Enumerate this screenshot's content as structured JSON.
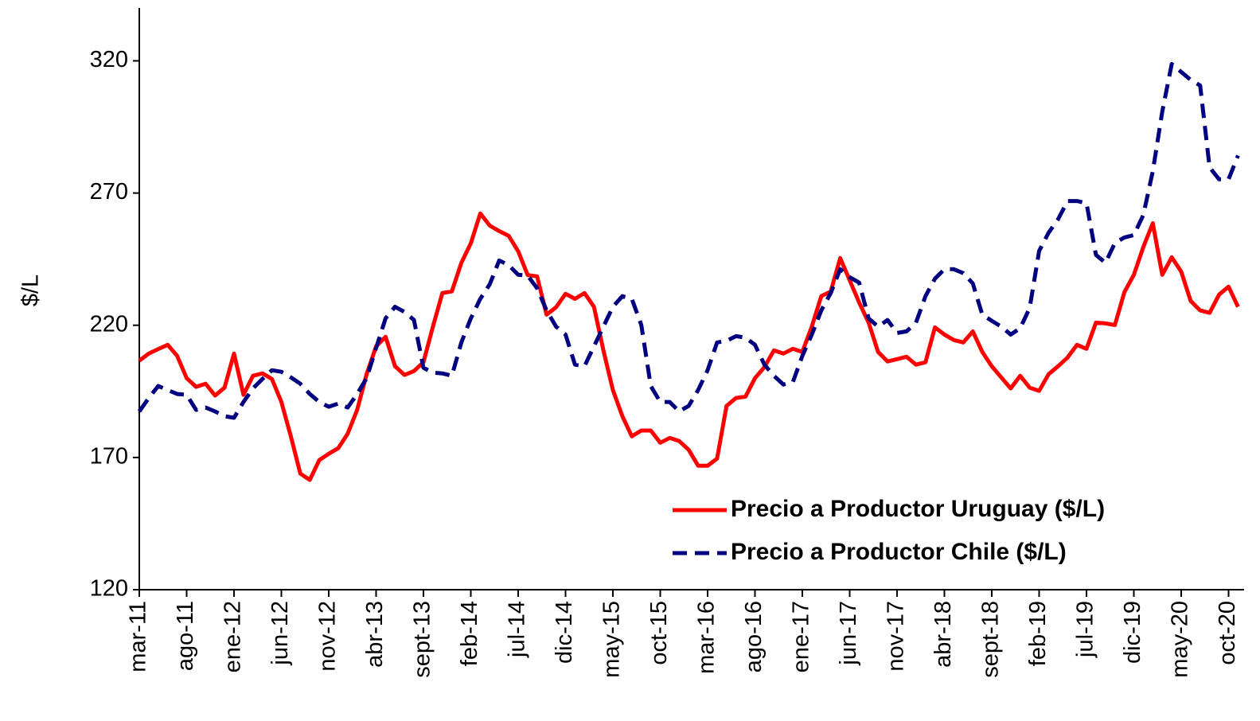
{
  "chart_data": {
    "type": "line",
    "y_label": "$/L",
    "categories": [
      "mar-11",
      null,
      null,
      null,
      null,
      "ago-11",
      null,
      null,
      null,
      null,
      "ene-12",
      null,
      null,
      null,
      null,
      "jun-12",
      null,
      null,
      null,
      null,
      "nov-12",
      null,
      null,
      null,
      null,
      "abr-13",
      null,
      null,
      null,
      null,
      "sept-13",
      null,
      null,
      null,
      null,
      "feb-14",
      null,
      null,
      null,
      null,
      "jul-14",
      null,
      null,
      null,
      null,
      "dic-14",
      null,
      null,
      null,
      null,
      "may-15",
      null,
      null,
      null,
      null,
      "oct-15",
      null,
      null,
      null,
      null,
      "mar-16",
      null,
      null,
      null,
      null,
      "ago-16",
      null,
      null,
      null,
      null,
      "ene-17",
      null,
      null,
      null,
      null,
      "jun-17",
      null,
      null,
      null,
      null,
      "nov-17",
      null,
      null,
      null,
      null,
      "abr-18",
      null,
      null,
      null,
      null,
      "sept-18",
      null,
      null,
      null,
      null,
      "feb-19",
      null,
      null,
      null,
      null,
      "jul-19",
      null,
      null,
      null,
      null,
      "dic-19",
      null,
      null,
      null,
      null,
      "may-20",
      null,
      null,
      null,
      null,
      "oct-20",
      null
    ],
    "series": [
      {
        "name": "Precio a Productor Uruguay ($/L)",
        "color": "#ff0000",
        "style": "solid",
        "values": [
          206.6,
          209.3,
          211,
          212.6,
          208.4,
          200,
          196.7,
          197.9,
          193.4,
          196.4,
          209.3,
          193.7,
          200.9,
          201.8,
          199.7,
          191,
          178,
          163.9,
          161.5,
          169,
          171.4,
          173.5,
          179,
          188,
          201.5,
          212,
          215.6,
          204.5,
          201.2,
          202.7,
          206,
          219.5,
          232.2,
          232.8,
          243.6,
          251,
          262.3,
          257.7,
          255.6,
          253.8,
          248,
          239,
          238.5,
          224,
          226.8,
          231.9,
          230,
          232.2,
          227,
          210.5,
          195.5,
          185.6,
          178,
          180.2,
          180.2,
          175.6,
          177.4,
          176.2,
          172.9,
          166.9,
          166.9,
          169.6,
          189.5,
          192.5,
          193,
          200,
          204.2,
          210.5,
          209.3,
          211.1,
          209.9,
          219.5,
          231,
          232.8,
          245.4,
          237,
          228.6,
          221,
          209.9,
          206.3,
          207.2,
          208.1,
          205.1,
          206,
          219.2,
          216.5,
          214.4,
          213.5,
          217.7,
          209.9,
          204.5,
          200.3,
          196.1,
          200.9,
          196.4,
          195.2,
          201.5,
          204.5,
          207.8,
          212.6,
          211.1,
          221,
          220.7,
          220.1,
          232.5,
          239.1,
          249.6,
          258.6,
          239.1,
          245.7,
          240.3,
          229.2,
          225.6,
          224.7,
          231.6,
          234.6,
          227
        ]
      },
      {
        "name": "Precio a Productor Chile ($/L)",
        "color": "#000080",
        "style": "dashed",
        "values": [
          187.4,
          192.5,
          197,
          195.5,
          194,
          193.7,
          188,
          188.9,
          187.4,
          185.6,
          185,
          191,
          196.1,
          199.7,
          203,
          202.4,
          200.3,
          197.9,
          194,
          191,
          189.2,
          190.4,
          188.9,
          194,
          200,
          211.4,
          222.6,
          227,
          225,
          222,
          203.9,
          202.1,
          201.8,
          200.9,
          213.5,
          222.6,
          230,
          235.5,
          244.5,
          242.7,
          239.1,
          238.8,
          234,
          225.6,
          219.5,
          216.5,
          205.1,
          204.5,
          212,
          219.5,
          227,
          231,
          230,
          220.1,
          197,
          191,
          191,
          187.4,
          189.5,
          195.5,
          203,
          213.5,
          214.1,
          215.9,
          215.3,
          212.6,
          205.1,
          200.9,
          197.6,
          198.5,
          208.4,
          216.5,
          225.6,
          232.2,
          241.2,
          238.2,
          236.1,
          222.6,
          219.5,
          222,
          217.1,
          217.7,
          221,
          231,
          237.6,
          241.2,
          241.2,
          239.7,
          235.8,
          224,
          221.7,
          219.5,
          216.5,
          218.9,
          226.5,
          248.1,
          255,
          260.1,
          267,
          267,
          266.2,
          246.6,
          243.6,
          251.1,
          253.2,
          254.1,
          261.7,
          278.2,
          300.8,
          318.8,
          315.8,
          312.8,
          310.7,
          279.7,
          275.2,
          275.2,
          284.2
        ]
      }
    ],
    "ylim": [
      120,
      340
    ],
    "yticks": [
      120,
      170,
      220,
      270,
      320
    ],
    "legend": "lower right"
  }
}
